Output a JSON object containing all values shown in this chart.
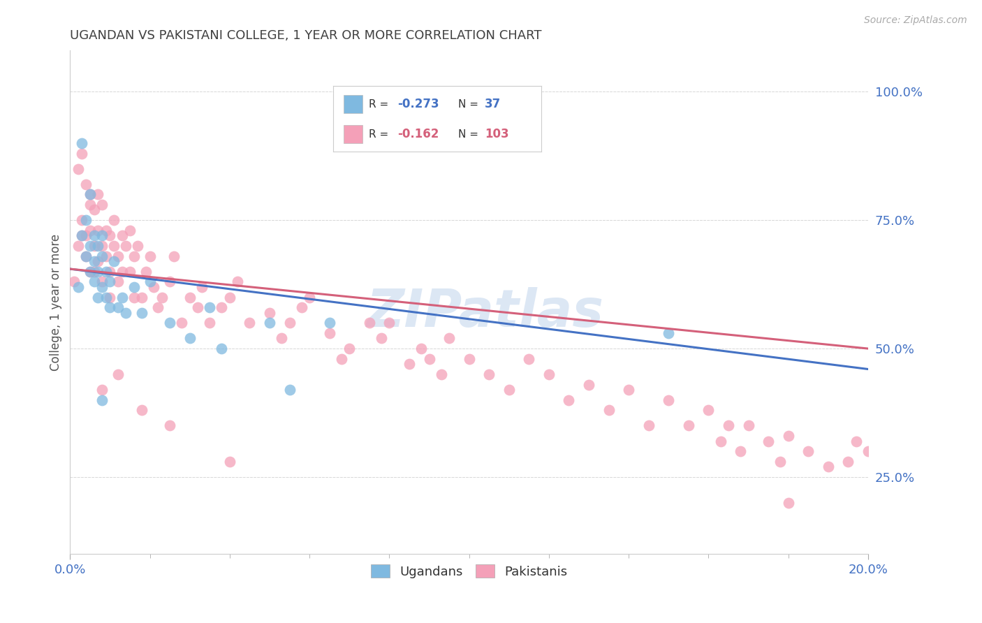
{
  "title": "UGANDAN VS PAKISTANI COLLEGE, 1 YEAR OR MORE CORRELATION CHART",
  "source_text": "Source: ZipAtlas.com",
  "ylabel": "College, 1 year or more",
  "xlim": [
    0.0,
    0.2
  ],
  "ylim": [
    0.1,
    1.08
  ],
  "ytick_labels": [
    "25.0%",
    "50.0%",
    "75.0%",
    "100.0%"
  ],
  "ytick_values": [
    0.25,
    0.5,
    0.75,
    1.0
  ],
  "legend_R1": "-0.273",
  "legend_N1": "37",
  "legend_R2": "-0.162",
  "legend_N2": "103",
  "color_ugandan": "#7fb9e0",
  "color_pakistani": "#f4a0b8",
  "trend_blue": "#4472c4",
  "trend_pink": "#d4607a",
  "watermark": "ZIPatlas",
  "background_color": "#ffffff",
  "grid_color": "#d8d8d8",
  "title_color": "#404040",
  "axis_color": "#4472c4",
  "ugandan_x": [
    0.002,
    0.003,
    0.003,
    0.004,
    0.004,
    0.005,
    0.005,
    0.005,
    0.006,
    0.006,
    0.006,
    0.007,
    0.007,
    0.007,
    0.008,
    0.008,
    0.008,
    0.009,
    0.009,
    0.01,
    0.01,
    0.011,
    0.012,
    0.013,
    0.014,
    0.016,
    0.018,
    0.02,
    0.025,
    0.03,
    0.035,
    0.038,
    0.05,
    0.055,
    0.065,
    0.15,
    0.008
  ],
  "ugandan_y": [
    0.62,
    0.9,
    0.72,
    0.75,
    0.68,
    0.8,
    0.65,
    0.7,
    0.72,
    0.67,
    0.63,
    0.7,
    0.65,
    0.6,
    0.72,
    0.68,
    0.62,
    0.65,
    0.6,
    0.63,
    0.58,
    0.67,
    0.58,
    0.6,
    0.57,
    0.62,
    0.57,
    0.63,
    0.55,
    0.52,
    0.58,
    0.5,
    0.55,
    0.42,
    0.55,
    0.53,
    0.4
  ],
  "pakistani_x": [
    0.001,
    0.002,
    0.002,
    0.003,
    0.003,
    0.004,
    0.004,
    0.004,
    0.005,
    0.005,
    0.005,
    0.005,
    0.006,
    0.006,
    0.006,
    0.007,
    0.007,
    0.007,
    0.008,
    0.008,
    0.008,
    0.009,
    0.009,
    0.01,
    0.01,
    0.01,
    0.011,
    0.011,
    0.012,
    0.012,
    0.013,
    0.013,
    0.014,
    0.015,
    0.015,
    0.016,
    0.016,
    0.017,
    0.018,
    0.019,
    0.02,
    0.021,
    0.022,
    0.023,
    0.025,
    0.026,
    0.028,
    0.03,
    0.032,
    0.033,
    0.035,
    0.038,
    0.04,
    0.042,
    0.045,
    0.05,
    0.053,
    0.055,
    0.058,
    0.06,
    0.065,
    0.068,
    0.07,
    0.075,
    0.078,
    0.08,
    0.085,
    0.088,
    0.09,
    0.093,
    0.095,
    0.1,
    0.105,
    0.11,
    0.115,
    0.12,
    0.125,
    0.13,
    0.135,
    0.14,
    0.145,
    0.15,
    0.155,
    0.16,
    0.163,
    0.165,
    0.168,
    0.17,
    0.175,
    0.178,
    0.18,
    0.185,
    0.19,
    0.195,
    0.197,
    0.2,
    0.003,
    0.008,
    0.012,
    0.018,
    0.025,
    0.04,
    0.18
  ],
  "pakistani_y": [
    0.63,
    0.85,
    0.7,
    0.88,
    0.75,
    0.82,
    0.72,
    0.68,
    0.8,
    0.78,
    0.73,
    0.65,
    0.77,
    0.7,
    0.65,
    0.8,
    0.73,
    0.67,
    0.78,
    0.7,
    0.63,
    0.73,
    0.68,
    0.72,
    0.65,
    0.6,
    0.75,
    0.7,
    0.68,
    0.63,
    0.72,
    0.65,
    0.7,
    0.73,
    0.65,
    0.6,
    0.68,
    0.7,
    0.6,
    0.65,
    0.68,
    0.62,
    0.58,
    0.6,
    0.63,
    0.68,
    0.55,
    0.6,
    0.58,
    0.62,
    0.55,
    0.58,
    0.6,
    0.63,
    0.55,
    0.57,
    0.52,
    0.55,
    0.58,
    0.6,
    0.53,
    0.48,
    0.5,
    0.55,
    0.52,
    0.55,
    0.47,
    0.5,
    0.48,
    0.45,
    0.52,
    0.48,
    0.45,
    0.42,
    0.48,
    0.45,
    0.4,
    0.43,
    0.38,
    0.42,
    0.35,
    0.4,
    0.35,
    0.38,
    0.32,
    0.35,
    0.3,
    0.35,
    0.32,
    0.28,
    0.33,
    0.3,
    0.27,
    0.28,
    0.32,
    0.3,
    0.72,
    0.42,
    0.45,
    0.38,
    0.35,
    0.28,
    0.2
  ]
}
